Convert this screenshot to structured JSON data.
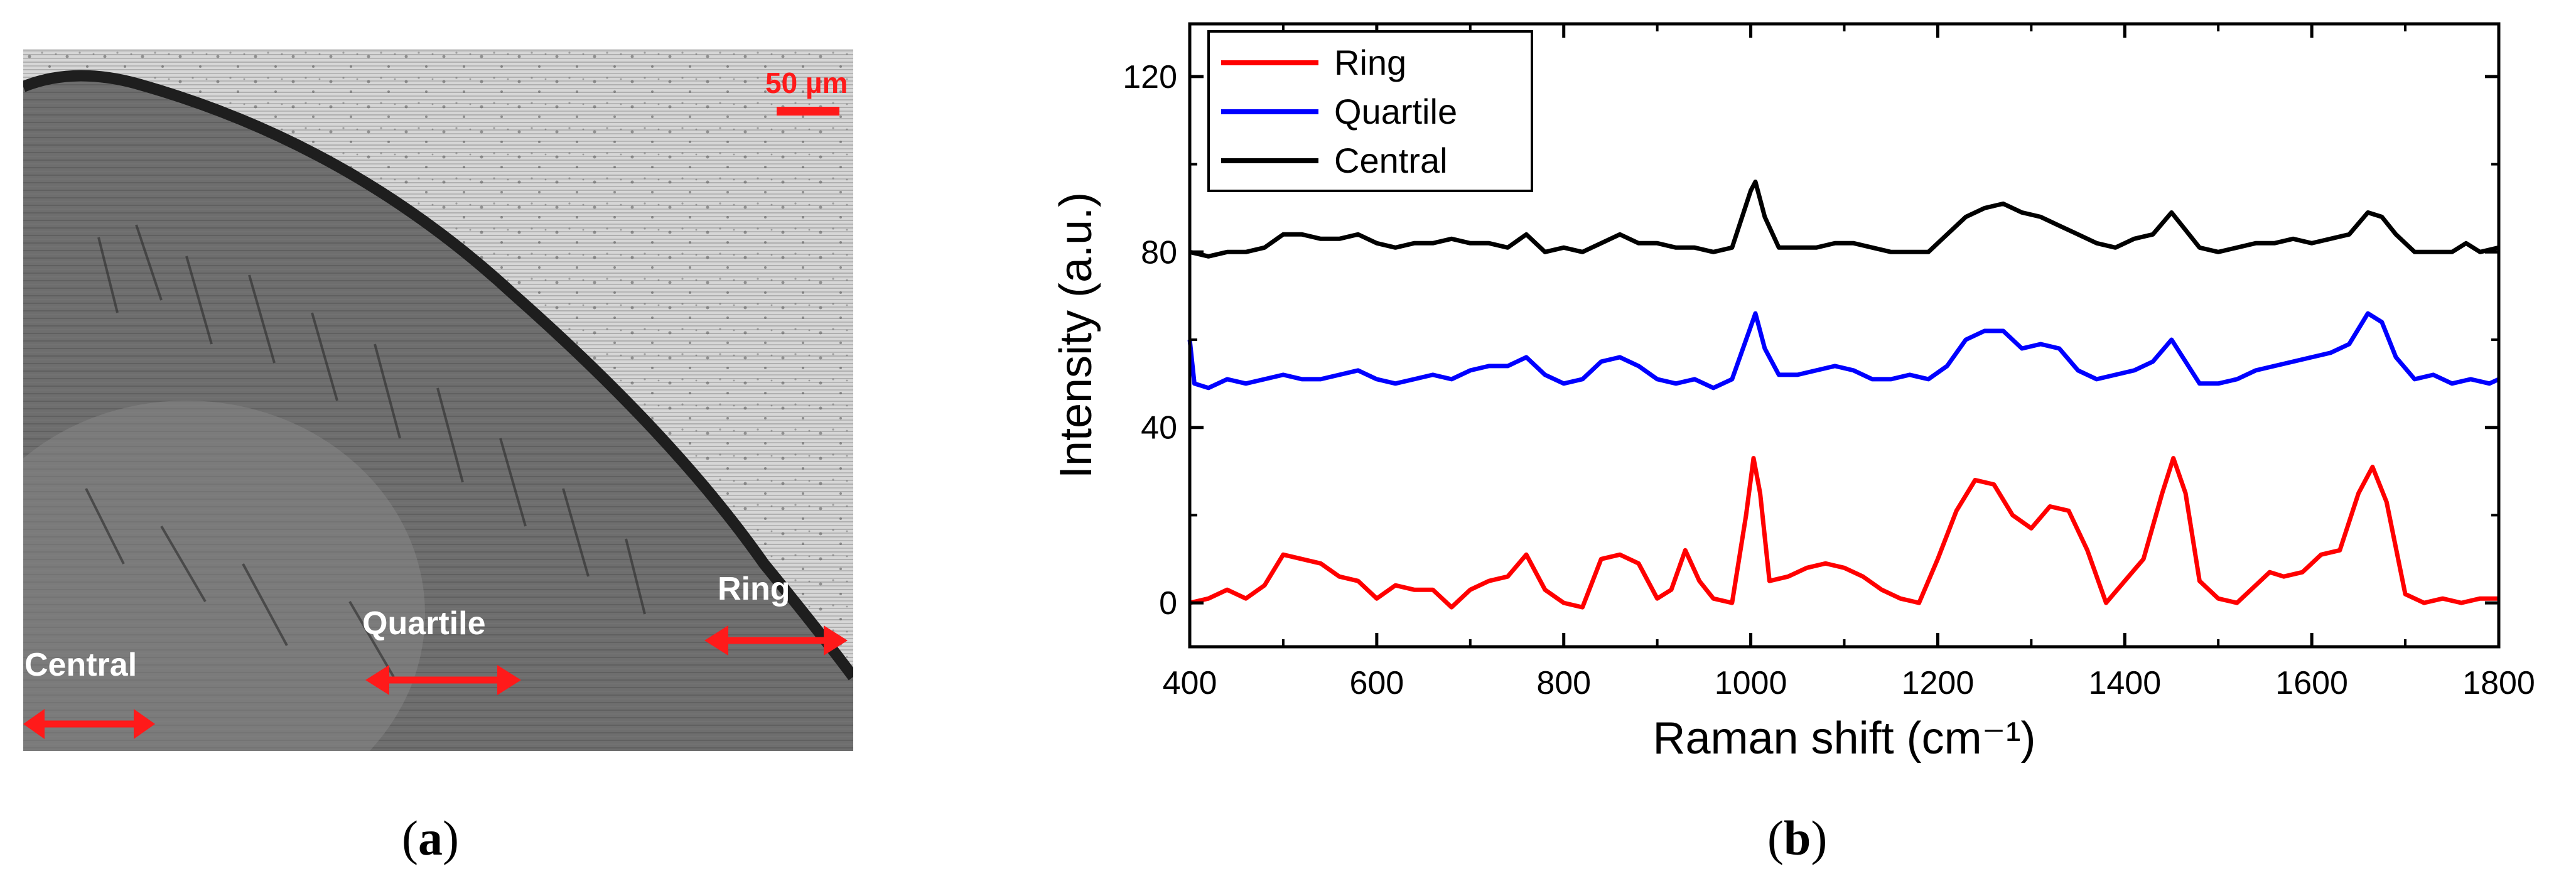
{
  "figure": {
    "panel_a": {
      "open": "(",
      "letter": "a",
      "close": ")"
    },
    "panel_b": {
      "open": "(",
      "letter": "b",
      "close": ")"
    }
  },
  "micrograph": {
    "scale_bar_label": "50 µm",
    "regions": [
      {
        "label": "Ring"
      },
      {
        "label": "Quartile"
      },
      {
        "label": "Central"
      }
    ],
    "annotation_color": "#ff1a1a"
  },
  "chart_data": {
    "type": "line",
    "title": "",
    "xlabel": "Raman shift (cm⁻¹)",
    "ylabel": "Intensity (a.u.)",
    "xlim": [
      400,
      1800
    ],
    "ylim": [
      -10,
      132
    ],
    "xticks": [
      400,
      600,
      800,
      1000,
      1200,
      1400,
      1600,
      1800
    ],
    "yticks": [
      0,
      40,
      80,
      120
    ],
    "grid": false,
    "legend_position": "top-left",
    "series": [
      {
        "name": "Ring",
        "color": "#ff0000",
        "points": [
          [
            400,
            0
          ],
          [
            420,
            1
          ],
          [
            440,
            3
          ],
          [
            460,
            1
          ],
          [
            480,
            4
          ],
          [
            500,
            11
          ],
          [
            520,
            10
          ],
          [
            540,
            9
          ],
          [
            560,
            6
          ],
          [
            580,
            5
          ],
          [
            600,
            1
          ],
          [
            620,
            4
          ],
          [
            640,
            3
          ],
          [
            660,
            3
          ],
          [
            680,
            -1
          ],
          [
            700,
            3
          ],
          [
            720,
            5
          ],
          [
            740,
            6
          ],
          [
            760,
            11
          ],
          [
            780,
            3
          ],
          [
            800,
            0
          ],
          [
            820,
            -1
          ],
          [
            840,
            10
          ],
          [
            860,
            11
          ],
          [
            880,
            9
          ],
          [
            900,
            1
          ],
          [
            915,
            3
          ],
          [
            930,
            12
          ],
          [
            945,
            5
          ],
          [
            960,
            1
          ],
          [
            980,
            0
          ],
          [
            995,
            20
          ],
          [
            1003,
            33
          ],
          [
            1010,
            25
          ],
          [
            1020,
            5
          ],
          [
            1040,
            6
          ],
          [
            1060,
            8
          ],
          [
            1080,
            9
          ],
          [
            1100,
            8
          ],
          [
            1120,
            6
          ],
          [
            1140,
            3
          ],
          [
            1160,
            1
          ],
          [
            1180,
            0
          ],
          [
            1200,
            10
          ],
          [
            1220,
            21
          ],
          [
            1240,
            28
          ],
          [
            1260,
            27
          ],
          [
            1280,
            20
          ],
          [
            1300,
            17
          ],
          [
            1320,
            22
          ],
          [
            1340,
            21
          ],
          [
            1360,
            12
          ],
          [
            1380,
            0
          ],
          [
            1400,
            5
          ],
          [
            1420,
            10
          ],
          [
            1440,
            25
          ],
          [
            1452,
            33
          ],
          [
            1465,
            25
          ],
          [
            1480,
            5
          ],
          [
            1500,
            1
          ],
          [
            1520,
            0
          ],
          [
            1540,
            4
          ],
          [
            1555,
            7
          ],
          [
            1570,
            6
          ],
          [
            1590,
            7
          ],
          [
            1610,
            11
          ],
          [
            1630,
            12
          ],
          [
            1650,
            25
          ],
          [
            1665,
            31
          ],
          [
            1680,
            23
          ],
          [
            1700,
            2
          ],
          [
            1720,
            0
          ],
          [
            1740,
            1
          ],
          [
            1760,
            0
          ],
          [
            1780,
            1
          ],
          [
            1800,
            1
          ]
        ]
      },
      {
        "name": "Quartile",
        "color": "#0000ff",
        "points": [
          [
            400,
            60
          ],
          [
            405,
            50
          ],
          [
            420,
            49
          ],
          [
            440,
            51
          ],
          [
            460,
            50
          ],
          [
            480,
            51
          ],
          [
            500,
            52
          ],
          [
            520,
            51
          ],
          [
            540,
            51
          ],
          [
            560,
            52
          ],
          [
            580,
            53
          ],
          [
            600,
            51
          ],
          [
            620,
            50
          ],
          [
            640,
            51
          ],
          [
            660,
            52
          ],
          [
            680,
            51
          ],
          [
            700,
            53
          ],
          [
            720,
            54
          ],
          [
            740,
            54
          ],
          [
            760,
            56
          ],
          [
            780,
            52
          ],
          [
            800,
            50
          ],
          [
            820,
            51
          ],
          [
            840,
            55
          ],
          [
            860,
            56
          ],
          [
            880,
            54
          ],
          [
            900,
            51
          ],
          [
            920,
            50
          ],
          [
            940,
            51
          ],
          [
            960,
            49
          ],
          [
            980,
            51
          ],
          [
            1000,
            63
          ],
          [
            1005,
            66
          ],
          [
            1015,
            58
          ],
          [
            1030,
            52
          ],
          [
            1050,
            52
          ],
          [
            1070,
            53
          ],
          [
            1090,
            54
          ],
          [
            1110,
            53
          ],
          [
            1130,
            51
          ],
          [
            1150,
            51
          ],
          [
            1170,
            52
          ],
          [
            1190,
            51
          ],
          [
            1210,
            54
          ],
          [
            1230,
            60
          ],
          [
            1250,
            62
          ],
          [
            1270,
            62
          ],
          [
            1290,
            58
          ],
          [
            1310,
            59
          ],
          [
            1330,
            58
          ],
          [
            1350,
            53
          ],
          [
            1370,
            51
          ],
          [
            1390,
            52
          ],
          [
            1410,
            53
          ],
          [
            1430,
            55
          ],
          [
            1450,
            60
          ],
          [
            1465,
            55
          ],
          [
            1480,
            50
          ],
          [
            1500,
            50
          ],
          [
            1520,
            51
          ],
          [
            1540,
            53
          ],
          [
            1560,
            54
          ],
          [
            1580,
            55
          ],
          [
            1600,
            56
          ],
          [
            1620,
            57
          ],
          [
            1640,
            59
          ],
          [
            1660,
            66
          ],
          [
            1675,
            64
          ],
          [
            1690,
            56
          ],
          [
            1710,
            51
          ],
          [
            1730,
            52
          ],
          [
            1750,
            50
          ],
          [
            1770,
            51
          ],
          [
            1790,
            50
          ],
          [
            1800,
            51
          ]
        ]
      },
      {
        "name": "Central",
        "color": "#000000",
        "points": [
          [
            400,
            80
          ],
          [
            420,
            79
          ],
          [
            440,
            80
          ],
          [
            460,
            80
          ],
          [
            480,
            81
          ],
          [
            500,
            84
          ],
          [
            520,
            84
          ],
          [
            540,
            83
          ],
          [
            560,
            83
          ],
          [
            580,
            84
          ],
          [
            600,
            82
          ],
          [
            620,
            81
          ],
          [
            640,
            82
          ],
          [
            660,
            82
          ],
          [
            680,
            83
          ],
          [
            700,
            82
          ],
          [
            720,
            82
          ],
          [
            740,
            81
          ],
          [
            760,
            84
          ],
          [
            780,
            80
          ],
          [
            800,
            81
          ],
          [
            820,
            80
          ],
          [
            840,
            82
          ],
          [
            860,
            84
          ],
          [
            880,
            82
          ],
          [
            900,
            82
          ],
          [
            920,
            81
          ],
          [
            940,
            81
          ],
          [
            960,
            80
          ],
          [
            980,
            81
          ],
          [
            1000,
            94
          ],
          [
            1005,
            96
          ],
          [
            1015,
            88
          ],
          [
            1030,
            81
          ],
          [
            1050,
            81
          ],
          [
            1070,
            81
          ],
          [
            1090,
            82
          ],
          [
            1110,
            82
          ],
          [
            1130,
            81
          ],
          [
            1150,
            80
          ],
          [
            1170,
            80
          ],
          [
            1190,
            80
          ],
          [
            1210,
            84
          ],
          [
            1230,
            88
          ],
          [
            1250,
            90
          ],
          [
            1270,
            91
          ],
          [
            1290,
            89
          ],
          [
            1310,
            88
          ],
          [
            1330,
            86
          ],
          [
            1350,
            84
          ],
          [
            1370,
            82
          ],
          [
            1390,
            81
          ],
          [
            1410,
            83
          ],
          [
            1430,
            84
          ],
          [
            1450,
            89
          ],
          [
            1465,
            85
          ],
          [
            1480,
            81
          ],
          [
            1500,
            80
          ],
          [
            1520,
            81
          ],
          [
            1540,
            82
          ],
          [
            1560,
            82
          ],
          [
            1580,
            83
          ],
          [
            1600,
            82
          ],
          [
            1620,
            83
          ],
          [
            1640,
            84
          ],
          [
            1660,
            89
          ],
          [
            1675,
            88
          ],
          [
            1690,
            84
          ],
          [
            1710,
            80
          ],
          [
            1730,
            80
          ],
          [
            1750,
            80
          ],
          [
            1765,
            82
          ],
          [
            1780,
            80
          ],
          [
            1800,
            81
          ]
        ]
      }
    ]
  }
}
